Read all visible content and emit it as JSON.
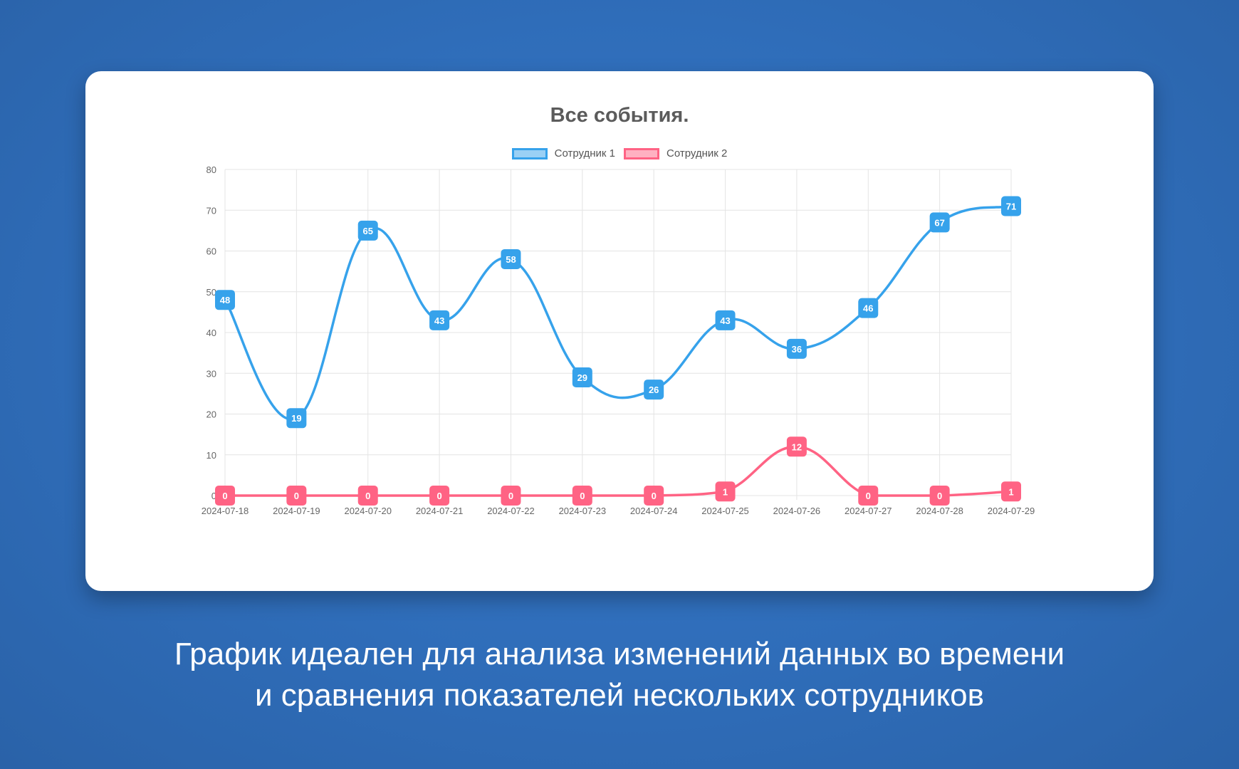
{
  "card": {
    "title": "Все события."
  },
  "caption": {
    "line1": "График идеален для анализа изменений данных во времени",
    "line2": "и сравнения показателей нескольких сотрудников"
  },
  "chart_data": {
    "type": "line",
    "title": "Все события.",
    "xlabel": "",
    "ylabel": "",
    "x": [
      "2024-07-18",
      "2024-07-19",
      "2024-07-20",
      "2024-07-21",
      "2024-07-22",
      "2024-07-23",
      "2024-07-24",
      "2024-07-25",
      "2024-07-26",
      "2024-07-27",
      "2024-07-28",
      "2024-07-29"
    ],
    "ylim": [
      0,
      80
    ],
    "yticks": [
      0,
      10,
      20,
      30,
      40,
      50,
      60,
      70,
      80
    ],
    "grid": true,
    "legend_position": "top",
    "series": [
      {
        "name": "Сотрудник 1",
        "color": "#36a2eb",
        "fill": "#9ad0f5",
        "values": [
          48,
          19,
          65,
          43,
          58,
          29,
          26,
          43,
          36,
          46,
          67,
          71
        ]
      },
      {
        "name": "Сотрудник 2",
        "color": "#ff6384",
        "fill": "#ffb1c1",
        "values": [
          0,
          0,
          0,
          0,
          0,
          0,
          0,
          1,
          12,
          0,
          0,
          1
        ]
      }
    ]
  }
}
